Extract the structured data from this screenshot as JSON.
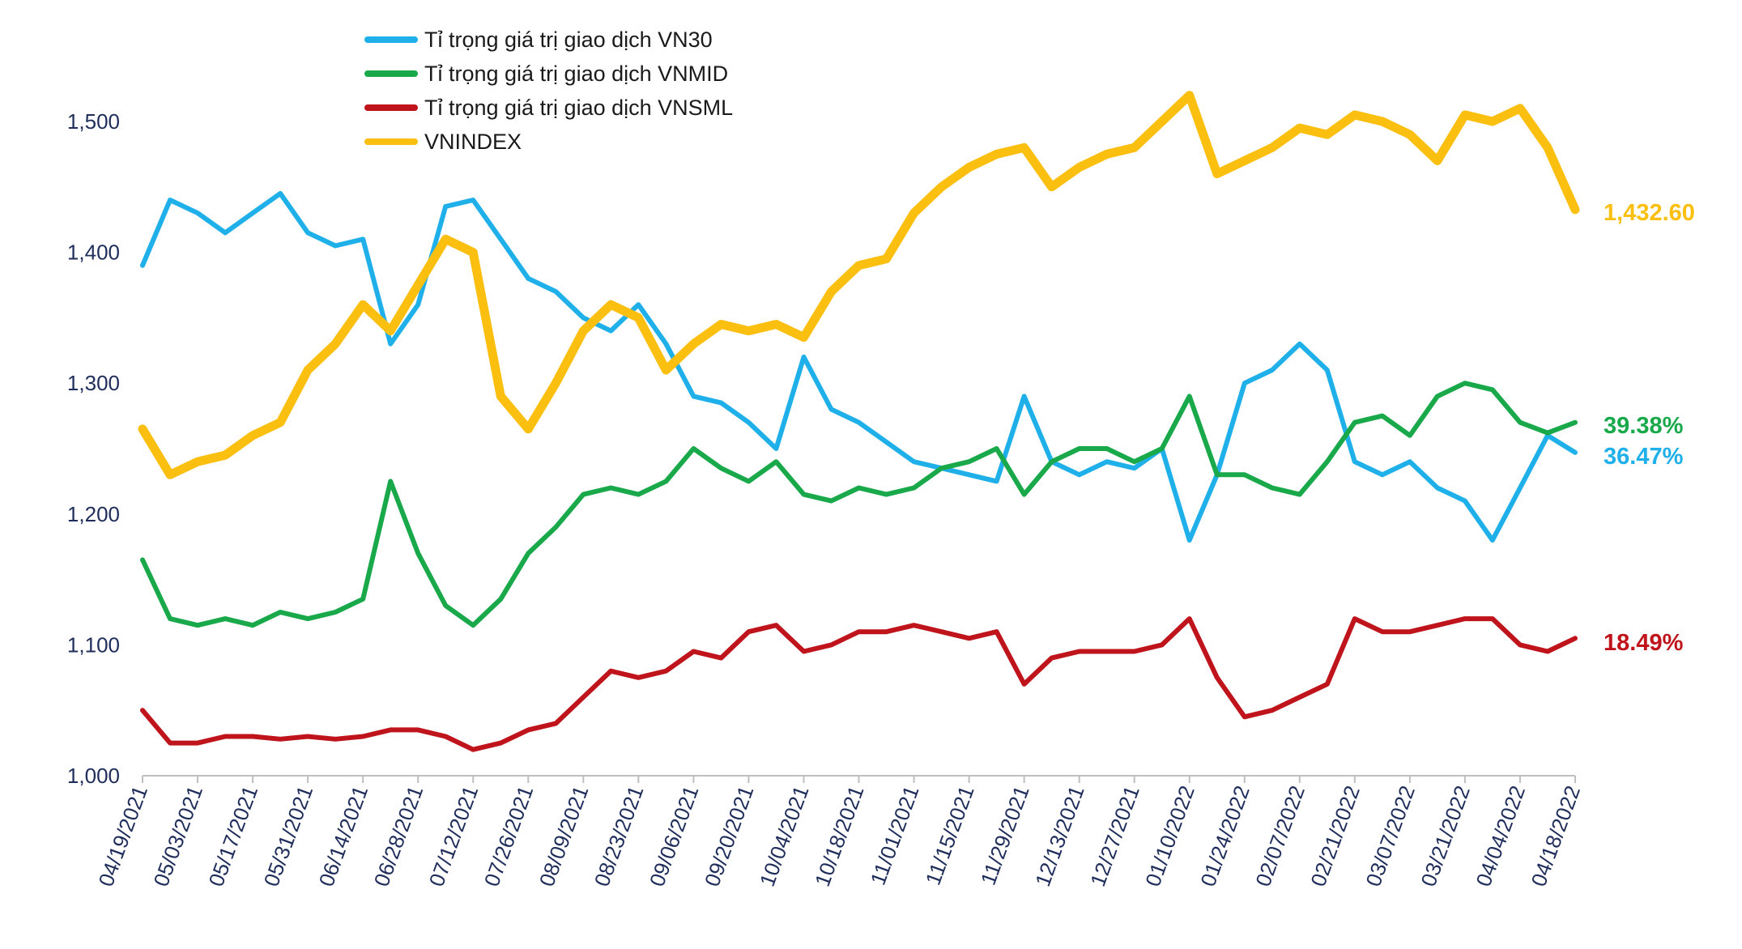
{
  "chart_data": {
    "type": "line",
    "title": "",
    "xlabel": "",
    "ylabel": "",
    "ylim": [
      1000,
      1550
    ],
    "yticks": [
      "1,000",
      "1,100",
      "1,200",
      "1,300",
      "1,400",
      "1,500"
    ],
    "xticks": [
      "04/19/2021",
      "05/03/2021",
      "05/17/2021",
      "05/31/2021",
      "06/14/2021",
      "06/28/2021",
      "07/12/2021",
      "07/26/2021",
      "08/09/2021",
      "08/23/2021",
      "09/06/2021",
      "09/20/2021",
      "10/04/2021",
      "10/18/2021",
      "11/01/2021",
      "11/15/2021",
      "11/29/2021",
      "12/13/2021",
      "12/27/2021",
      "01/10/2022",
      "01/24/2022",
      "02/07/2022",
      "02/21/2022",
      "03/07/2022",
      "03/21/2022",
      "04/04/2022",
      "04/18/2022"
    ],
    "grid": false,
    "legend_position": "top-left",
    "series": [
      {
        "name": "Tỉ trọng giá trị giao dịch VN30",
        "color": "#1fb0ea",
        "end_label": "36.47%",
        "x": [
          "04/19/2021",
          "04/26/2021",
          "05/03/2021",
          "05/10/2021",
          "05/17/2021",
          "05/24/2021",
          "05/31/2021",
          "06/07/2021",
          "06/14/2021",
          "06/21/2021",
          "06/28/2021",
          "07/05/2021",
          "07/12/2021",
          "07/19/2021",
          "07/26/2021",
          "08/02/2021",
          "08/09/2021",
          "08/16/2021",
          "08/23/2021",
          "08/30/2021",
          "09/06/2021",
          "09/13/2021",
          "09/20/2021",
          "09/27/2021",
          "10/04/2021",
          "10/11/2021",
          "10/18/2021",
          "10/25/2021",
          "11/01/2021",
          "11/08/2021",
          "11/15/2021",
          "11/22/2021",
          "11/29/2021",
          "12/06/2021",
          "12/13/2021",
          "12/20/2021",
          "12/27/2021",
          "01/03/2022",
          "01/10/2022",
          "01/17/2022",
          "01/24/2022",
          "01/31/2022",
          "02/07/2022",
          "02/14/2022",
          "02/21/2022",
          "02/28/2022",
          "03/07/2022",
          "03/14/2022",
          "03/21/2022",
          "03/28/2022",
          "04/04/2022",
          "04/11/2022",
          "04/18/2022"
        ],
        "values": [
          1390,
          1440,
          1430,
          1415,
          1430,
          1445,
          1415,
          1405,
          1410,
          1330,
          1360,
          1435,
          1440,
          1410,
          1380,
          1370,
          1350,
          1340,
          1360,
          1330,
          1290,
          1285,
          1270,
          1250,
          1320,
          1280,
          1270,
          1255,
          1240,
          1235,
          1230,
          1225,
          1290,
          1240,
          1230,
          1240,
          1235,
          1250,
          1180,
          1230,
          1300,
          1310,
          1330,
          1310,
          1240,
          1230,
          1240,
          1220,
          1210,
          1180,
          1220,
          1260,
          1247
        ]
      },
      {
        "name": "Tỉ trọng giá trị giao dịch VNMID",
        "color": "#19a94b",
        "end_label": "39.38%",
        "x": [
          "04/19/2021",
          "04/26/2021",
          "05/03/2021",
          "05/10/2021",
          "05/17/2021",
          "05/24/2021",
          "05/31/2021",
          "06/07/2021",
          "06/14/2021",
          "06/21/2021",
          "06/28/2021",
          "07/05/2021",
          "07/12/2021",
          "07/19/2021",
          "07/26/2021",
          "08/02/2021",
          "08/09/2021",
          "08/16/2021",
          "08/23/2021",
          "08/30/2021",
          "09/06/2021",
          "09/13/2021",
          "09/20/2021",
          "09/27/2021",
          "10/04/2021",
          "10/11/2021",
          "10/18/2021",
          "10/25/2021",
          "11/01/2021",
          "11/08/2021",
          "11/15/2021",
          "11/22/2021",
          "11/29/2021",
          "12/06/2021",
          "12/13/2021",
          "12/20/2021",
          "12/27/2021",
          "01/03/2022",
          "01/10/2022",
          "01/17/2022",
          "01/24/2022",
          "01/31/2022",
          "02/07/2022",
          "02/14/2022",
          "02/21/2022",
          "02/28/2022",
          "03/07/2022",
          "03/14/2022",
          "03/21/2022",
          "03/28/2022",
          "04/04/2022",
          "04/11/2022",
          "04/18/2022"
        ],
        "values": [
          1165,
          1120,
          1115,
          1120,
          1115,
          1125,
          1120,
          1125,
          1135,
          1225,
          1170,
          1130,
          1115,
          1135,
          1170,
          1190,
          1215,
          1220,
          1215,
          1225,
          1250,
          1235,
          1225,
          1240,
          1215,
          1210,
          1220,
          1215,
          1220,
          1235,
          1240,
          1250,
          1215,
          1240,
          1250,
          1250,
          1240,
          1250,
          1290,
          1230,
          1230,
          1220,
          1215,
          1240,
          1270,
          1275,
          1260,
          1290,
          1300,
          1295,
          1270,
          1262,
          1270
        ]
      },
      {
        "name": "Tỉ trọng giá trị giao dịch VNSML",
        "color": "#c0141c",
        "end_label": "18.49%",
        "x": [
          "04/19/2021",
          "04/26/2021",
          "05/03/2021",
          "05/10/2021",
          "05/17/2021",
          "05/24/2021",
          "05/31/2021",
          "06/07/2021",
          "06/14/2021",
          "06/21/2021",
          "06/28/2021",
          "07/05/2021",
          "07/12/2021",
          "07/19/2021",
          "07/26/2021",
          "08/02/2021",
          "08/09/2021",
          "08/16/2021",
          "08/23/2021",
          "08/30/2021",
          "09/06/2021",
          "09/13/2021",
          "09/20/2021",
          "09/27/2021",
          "10/04/2021",
          "10/11/2021",
          "10/18/2021",
          "10/25/2021",
          "11/01/2021",
          "11/08/2021",
          "11/15/2021",
          "11/22/2021",
          "11/29/2021",
          "12/06/2021",
          "12/13/2021",
          "12/20/2021",
          "12/27/2021",
          "01/03/2022",
          "01/10/2022",
          "01/17/2022",
          "01/24/2022",
          "01/31/2022",
          "02/07/2022",
          "02/14/2022",
          "02/21/2022",
          "02/28/2022",
          "03/07/2022",
          "03/14/2022",
          "03/21/2022",
          "03/28/2022",
          "04/04/2022",
          "04/11/2022",
          "04/18/2022"
        ],
        "values": [
          1050,
          1025,
          1025,
          1030,
          1030,
          1028,
          1030,
          1028,
          1030,
          1035,
          1035,
          1030,
          1020,
          1025,
          1035,
          1040,
          1060,
          1080,
          1075,
          1080,
          1095,
          1090,
          1110,
          1115,
          1095,
          1100,
          1110,
          1110,
          1115,
          1110,
          1105,
          1110,
          1070,
          1090,
          1095,
          1095,
          1095,
          1100,
          1120,
          1075,
          1045,
          1050,
          1060,
          1070,
          1120,
          1110,
          1110,
          1115,
          1120,
          1120,
          1100,
          1095,
          1105
        ]
      },
      {
        "name": "VNINDEX",
        "color": "#fbbf10",
        "end_label": "1,432.60",
        "x": [
          "04/19/2021",
          "04/26/2021",
          "05/03/2021",
          "05/10/2021",
          "05/17/2021",
          "05/24/2021",
          "05/31/2021",
          "06/07/2021",
          "06/14/2021",
          "06/21/2021",
          "06/28/2021",
          "07/05/2021",
          "07/12/2021",
          "07/19/2021",
          "07/26/2021",
          "08/02/2021",
          "08/09/2021",
          "08/16/2021",
          "08/23/2021",
          "08/30/2021",
          "09/06/2021",
          "09/13/2021",
          "09/20/2021",
          "09/27/2021",
          "10/04/2021",
          "10/11/2021",
          "10/18/2021",
          "10/25/2021",
          "11/01/2021",
          "11/08/2021",
          "11/15/2021",
          "11/22/2021",
          "11/29/2021",
          "12/06/2021",
          "12/13/2021",
          "12/20/2021",
          "12/27/2021",
          "01/03/2022",
          "01/10/2022",
          "01/17/2022",
          "01/24/2022",
          "01/31/2022",
          "02/07/2022",
          "02/14/2022",
          "02/21/2022",
          "02/28/2022",
          "03/07/2022",
          "03/14/2022",
          "03/21/2022",
          "03/28/2022",
          "04/04/2022",
          "04/11/2022",
          "04/18/2022"
        ],
        "values": [
          1265,
          1230,
          1240,
          1245,
          1260,
          1270,
          1310,
          1330,
          1360,
          1340,
          1375,
          1410,
          1400,
          1290,
          1265,
          1300,
          1340,
          1360,
          1350,
          1310,
          1330,
          1345,
          1340,
          1345,
          1335,
          1370,
          1390,
          1395,
          1430,
          1450,
          1465,
          1475,
          1480,
          1450,
          1465,
          1475,
          1480,
          1500,
          1520,
          1460,
          1470,
          1480,
          1495,
          1490,
          1505,
          1500,
          1490,
          1470,
          1505,
          1500,
          1510,
          1480,
          1432.6
        ]
      }
    ]
  }
}
